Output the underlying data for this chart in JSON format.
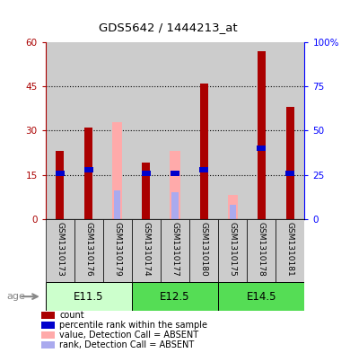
{
  "title": "GDS5642 / 1444213_at",
  "samples": [
    "GSM1310173",
    "GSM1310176",
    "GSM1310179",
    "GSM1310174",
    "GSM1310177",
    "GSM1310180",
    "GSM1310175",
    "GSM1310178",
    "GSM1310181"
  ],
  "age_groups": [
    {
      "label": "E11.5",
      "start": 0,
      "end": 3
    },
    {
      "label": "E12.5",
      "start": 3,
      "end": 6
    },
    {
      "label": "E14.5",
      "start": 6,
      "end": 9
    }
  ],
  "age_group_colors": [
    "#ccffcc",
    "#55dd55",
    "#55dd55"
  ],
  "count_values": [
    23,
    31,
    null,
    19,
    null,
    46,
    null,
    57,
    38
  ],
  "percentile_values": [
    26,
    28,
    null,
    26,
    26,
    28,
    null,
    40,
    26
  ],
  "absent_value_bars": [
    null,
    null,
    33,
    null,
    23,
    null,
    8,
    null,
    null
  ],
  "absent_rank_bars": [
    null,
    null,
    16,
    null,
    15,
    null,
    8,
    null,
    null
  ],
  "ylim_left": [
    0,
    60
  ],
  "ylim_right": [
    0,
    100
  ],
  "yticks_left": [
    0,
    15,
    30,
    45,
    60
  ],
  "yticks_right": [
    0,
    25,
    50,
    75,
    100
  ],
  "count_color": "#aa0000",
  "percentile_color": "#0000cc",
  "absent_value_color": "#ffaaaa",
  "absent_rank_color": "#aaaaee",
  "bar_bg_color": "#cccccc",
  "age_arrow_label": "age",
  "legend_items": [
    {
      "color": "#aa0000",
      "label": "count"
    },
    {
      "color": "#0000cc",
      "label": "percentile rank within the sample"
    },
    {
      "color": "#ffaaaa",
      "label": "value, Detection Call = ABSENT"
    },
    {
      "color": "#aaaaee",
      "label": "rank, Detection Call = ABSENT"
    }
  ]
}
